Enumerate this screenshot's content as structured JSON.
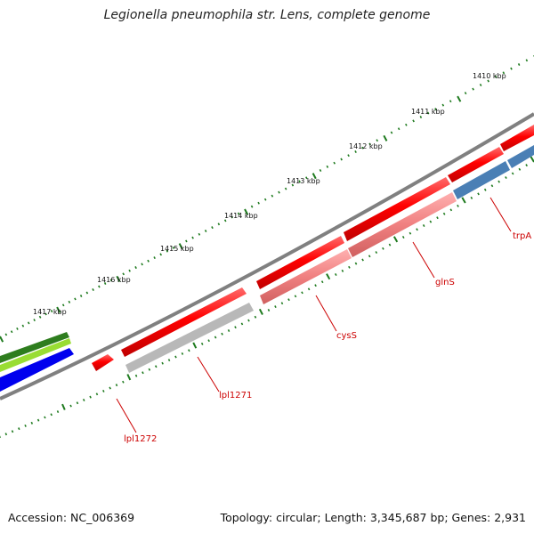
{
  "title": "Legionella pneumophila str. Lens, complete genome",
  "footer": {
    "accession": "Accession: NC_006369",
    "summary": "Topology: circular; Length: 3,345,687 bp; Genes: 2,931"
  },
  "scale_labels": [
    "1410 kbp",
    "1411 kbp",
    "1412 kbp",
    "1413 kbp",
    "1414 kbp",
    "1415 kbp",
    "1416 kbp",
    "1417 kbp"
  ],
  "genes": [
    {
      "label": "trpA",
      "color": "#c83737"
    },
    {
      "label": "glnS",
      "color": "#c83737"
    },
    {
      "label": "cysS",
      "color": "#c83737"
    },
    {
      "label": "lpl1271",
      "color": "#c83737"
    },
    {
      "label": "lpl1272",
      "color": "#c83737"
    }
  ],
  "colors": {
    "cds_forward": "#ff0000",
    "cds_reverse_light": "#f08080",
    "cds_grey": "#b0b0b0",
    "cds_blue": "#4a7fb5",
    "backbone": "#808080",
    "tick": "#1e7a1e",
    "green_dark": "#2e7d1e",
    "green_light": "#99dd33",
    "blue": "#0000ee"
  }
}
